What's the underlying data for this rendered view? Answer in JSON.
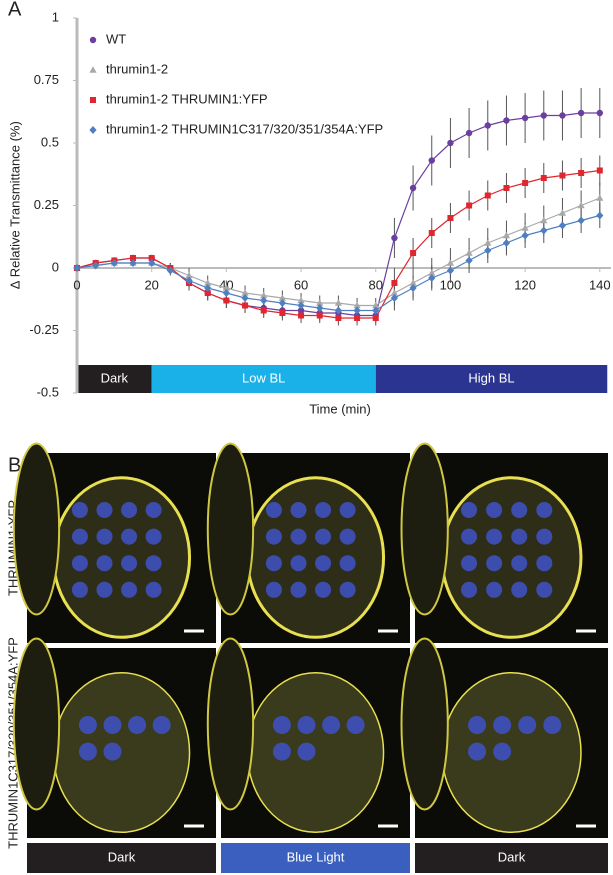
{
  "chart_data": {
    "type": "line",
    "panel_label": "A",
    "y_label": "∆ Relative Transmittance (%)",
    "x_label": "Time (min)",
    "xlim": [
      0,
      143
    ],
    "ylim": [
      -0.5,
      1
    ],
    "xticks": [
      0,
      20,
      40,
      60,
      80,
      100,
      120,
      140
    ],
    "yticks": [
      1,
      0.75,
      0.5,
      0.25,
      0,
      -0.25,
      -0.5
    ],
    "x": [
      0,
      5,
      10,
      15,
      20,
      25,
      30,
      35,
      40,
      45,
      50,
      55,
      60,
      65,
      70,
      75,
      80,
      85,
      90,
      95,
      100,
      105,
      110,
      115,
      120,
      125,
      130,
      135,
      140
    ],
    "series": [
      {
        "name": "WT",
        "color": "#6b3fa0",
        "marker": "circle",
        "values": [
          0,
          0.02,
          0.03,
          0.04,
          0.04,
          0.0,
          -0.06,
          -0.1,
          -0.13,
          -0.15,
          -0.16,
          -0.17,
          -0.17,
          -0.18,
          -0.18,
          -0.19,
          -0.19,
          0.12,
          0.32,
          0.43,
          0.5,
          0.54,
          0.57,
          0.59,
          0.6,
          0.61,
          0.61,
          0.62,
          0.62
        ],
        "errors": [
          0.01,
          0.01,
          0.01,
          0.01,
          0.01,
          0.02,
          0.03,
          0.03,
          0.03,
          0.03,
          0.03,
          0.03,
          0.03,
          0.03,
          0.03,
          0.03,
          0.03,
          0.08,
          0.09,
          0.1,
          0.1,
          0.1,
          0.1,
          0.1,
          0.1,
          0.1,
          0.1,
          0.1,
          0.1
        ]
      },
      {
        "name": "thrumin1-2",
        "color": "#a8a8a8",
        "marker": "triangle",
        "values": [
          0,
          0.01,
          0.02,
          0.02,
          0.02,
          0.0,
          -0.03,
          -0.06,
          -0.08,
          -0.1,
          -0.11,
          -0.12,
          -0.13,
          -0.14,
          -0.14,
          -0.15,
          -0.15,
          -0.1,
          -0.06,
          -0.02,
          0.02,
          0.06,
          0.1,
          0.13,
          0.16,
          0.19,
          0.22,
          0.25,
          0.28
        ],
        "errors": [
          0.01,
          0.01,
          0.01,
          0.01,
          0.01,
          0.02,
          0.03,
          0.03,
          0.03,
          0.03,
          0.03,
          0.03,
          0.03,
          0.03,
          0.03,
          0.03,
          0.03,
          0.05,
          0.06,
          0.06,
          0.06,
          0.06,
          0.06,
          0.06,
          0.06,
          0.06,
          0.06,
          0.06,
          0.06
        ]
      },
      {
        "name": "thrumin1-2 THRUMIN1:YFP",
        "color": "#e0262f",
        "marker": "square",
        "values": [
          0,
          0.02,
          0.03,
          0.04,
          0.04,
          0.0,
          -0.06,
          -0.1,
          -0.13,
          -0.15,
          -0.17,
          -0.18,
          -0.19,
          -0.19,
          -0.2,
          -0.2,
          -0.2,
          -0.06,
          0.06,
          0.14,
          0.2,
          0.25,
          0.29,
          0.32,
          0.34,
          0.36,
          0.37,
          0.38,
          0.39
        ],
        "errors": [
          0.01,
          0.01,
          0.01,
          0.01,
          0.01,
          0.02,
          0.03,
          0.03,
          0.03,
          0.03,
          0.03,
          0.03,
          0.03,
          0.03,
          0.03,
          0.03,
          0.03,
          0.06,
          0.06,
          0.06,
          0.06,
          0.06,
          0.06,
          0.06,
          0.06,
          0.06,
          0.06,
          0.06,
          0.06
        ]
      },
      {
        "name": "thrumin1-2 THRUMIN1C317/320/351/354A:YFP",
        "color": "#4f7fc1",
        "marker": "diamond",
        "values": [
          0,
          0.01,
          0.02,
          0.02,
          0.02,
          -0.01,
          -0.05,
          -0.08,
          -0.1,
          -0.12,
          -0.13,
          -0.14,
          -0.15,
          -0.16,
          -0.17,
          -0.17,
          -0.17,
          -0.12,
          -0.08,
          -0.04,
          -0.01,
          0.03,
          0.07,
          0.1,
          0.13,
          0.15,
          0.17,
          0.19,
          0.21
        ],
        "errors": [
          0.01,
          0.01,
          0.01,
          0.01,
          0.01,
          0.02,
          0.03,
          0.03,
          0.03,
          0.03,
          0.03,
          0.03,
          0.03,
          0.03,
          0.03,
          0.03,
          0.03,
          0.05,
          0.05,
          0.05,
          0.05,
          0.05,
          0.05,
          0.05,
          0.05,
          0.05,
          0.05,
          0.05,
          0.05
        ]
      }
    ],
    "periods": [
      {
        "label": "Dark",
        "start": 0,
        "end": 20,
        "color": "#231f20"
      },
      {
        "label": "Low BL",
        "start": 20,
        "end": 80,
        "color": "#1ab1e8"
      },
      {
        "label": "High BL",
        "start": 80,
        "end": 142,
        "color": "#2b3591"
      }
    ]
  },
  "panel_b": {
    "label": "B",
    "rows": [
      "THRUMIN1:YFP",
      "THRUMIN1C317/320/351/354A:YFP"
    ],
    "conditions": [
      {
        "label": "Dark",
        "color": "#231f20"
      },
      {
        "label": "Blue Light",
        "color": "#3a5fbf"
      },
      {
        "label": "Dark",
        "color": "#231f20"
      }
    ]
  }
}
